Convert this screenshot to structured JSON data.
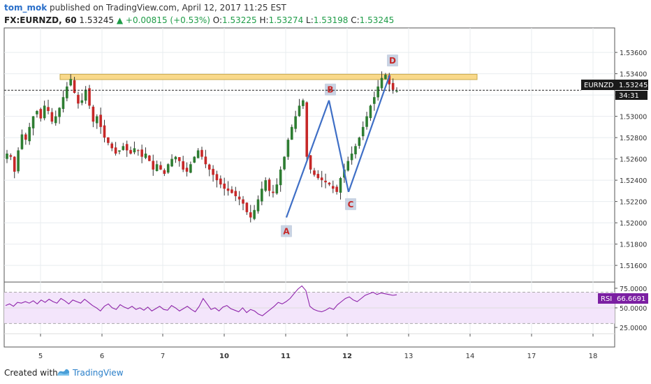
{
  "header": {
    "author": "tom_mok",
    "published": "published on TradingView.com, April 12, 2017 11:25 EST",
    "symbol": "FX:EURNZD, 60",
    "last": "1.53245",
    "change": "▲ +0.00815 (+0.53%)",
    "open_label": "O:",
    "open": "1.53225",
    "high_label": "H:",
    "high": "1.53274",
    "low_label": "L:",
    "low": "1.53198",
    "close_label": "C:",
    "close": "1.53245"
  },
  "price_tag": {
    "symbol": "EURNZD",
    "price": "1.53245",
    "countdown": "34:31"
  },
  "rsi_tag": {
    "label": "RSI",
    "value": "66.6691"
  },
  "chart_data": [
    {
      "type": "candlestick",
      "symbol": "FX:EURNZD",
      "interval": "60",
      "ylim": [
        1.5145,
        1.5383
      ],
      "y_ticks": [
        "1.53600",
        "1.53400",
        "1.53200",
        "1.53000",
        "1.52800",
        "1.52600",
        "1.52400",
        "1.52200",
        "1.52000",
        "1.51800",
        "1.51600"
      ],
      "y_tick_values": [
        1.536,
        1.534,
        1.532,
        1.53,
        1.528,
        1.526,
        1.524,
        1.522,
        1.52,
        1.518,
        1.516
      ],
      "x_ticks": [
        "5",
        "6",
        "7",
        "10",
        "11",
        "12",
        "13",
        "14",
        "17",
        "18"
      ],
      "x_tick_bold": [
        false,
        false,
        false,
        true,
        true,
        true,
        false,
        false,
        false,
        false
      ],
      "grid": true,
      "current_price": 1.53245,
      "resistance_zone": [
        1.53345,
        1.53395
      ],
      "pattern_points": [
        {
          "label": "A",
          "price": 1.5205
        },
        {
          "label": "B",
          "price": 1.5315
        },
        {
          "label": "C",
          "price": 1.5229
        },
        {
          "label": "D",
          "price": 1.5339
        }
      ],
      "close_path": [
        1.5265,
        1.5262,
        1.5248,
        1.5268,
        1.5283,
        1.5278,
        1.529,
        1.53,
        1.5305,
        1.5298,
        1.531,
        1.5305,
        1.5295,
        1.53,
        1.5308,
        1.5318,
        1.5328,
        1.5335,
        1.5322,
        1.5312,
        1.5315,
        1.5325,
        1.531,
        1.5295,
        1.53,
        1.529,
        1.528,
        1.5275,
        1.527,
        1.5265,
        1.5268,
        1.5272,
        1.5268,
        1.5265,
        1.527,
        1.5268,
        1.5262,
        1.5265,
        1.5258,
        1.525,
        1.5255,
        1.525,
        1.5246,
        1.5255,
        1.526,
        1.5262,
        1.5258,
        1.525,
        1.5248,
        1.5255,
        1.5262,
        1.5268,
        1.5262,
        1.5255,
        1.525,
        1.5245,
        1.524,
        1.5236,
        1.5232,
        1.523,
        1.5228,
        1.5225,
        1.5222,
        1.5218,
        1.521,
        1.5205,
        1.5212,
        1.5222,
        1.5232,
        1.524,
        1.523,
        1.5228,
        1.5236,
        1.525,
        1.5262,
        1.5278,
        1.529,
        1.53,
        1.531,
        1.5315,
        1.5262,
        1.525,
        1.5245,
        1.5242,
        1.524,
        1.5238,
        1.5236,
        1.5232,
        1.5229,
        1.5242,
        1.525,
        1.5258,
        1.5265,
        1.5272,
        1.528,
        1.529,
        1.53,
        1.531,
        1.5318,
        1.5328,
        1.5336,
        1.5339,
        1.533,
        1.5325,
        1.5324
      ]
    },
    {
      "type": "line",
      "name": "RSI",
      "ylim": [
        17,
        82
      ],
      "y_ticks": [
        "75.0000",
        "50.0000",
        "25.0000"
      ],
      "y_tick_values": [
        75,
        50,
        25
      ],
      "band": [
        30,
        70
      ],
      "current": 66.6691,
      "values": [
        53,
        55,
        52,
        57,
        56,
        58,
        56,
        59,
        55,
        60,
        57,
        61,
        58,
        56,
        62,
        59,
        55,
        60,
        58,
        56,
        61,
        57,
        53,
        50,
        46,
        52,
        55,
        50,
        48,
        54,
        51,
        49,
        52,
        48,
        50,
        47,
        51,
        46,
        49,
        52,
        48,
        47,
        53,
        50,
        46,
        49,
        52,
        48,
        45,
        52,
        62,
        55,
        48,
        50,
        46,
        51,
        53,
        49,
        47,
        45,
        50,
        44,
        48,
        46,
        42,
        40,
        44,
        48,
        52,
        57,
        55,
        58,
        62,
        68,
        74,
        78,
        72,
        52,
        48,
        46,
        45,
        47,
        50,
        48,
        54,
        58,
        62,
        64,
        60,
        58,
        62,
        66,
        68,
        70,
        67,
        69,
        68,
        67,
        66,
        66.67
      ]
    }
  ]
}
